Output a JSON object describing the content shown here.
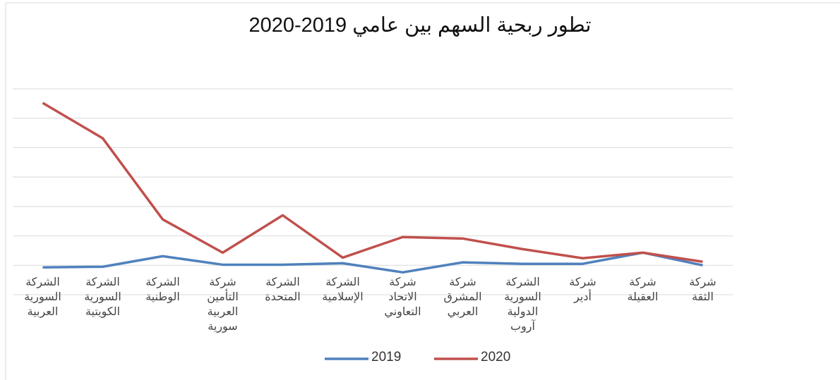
{
  "chart_data": {
    "type": "line",
    "title": "تطور ربحية السهم بين عامي 2019-2020",
    "categories": [
      "الشركة\nالسورية\nالعربية",
      "الشركة\nالسورية\nالكويتية",
      "الشركة\nالوطنية",
      "شركة\nالتأمين\nالعربية\nسورية",
      "الشركة\nالمتحدة",
      "الشركة\nالإسلامية",
      "شركة\nالاتحاد\nالتعاوني",
      "شركة\nالمشرق\nالعربي",
      "الشركة\nالسورية\nالدولية\nآروب",
      "شركة\nأدير",
      "شركة\nالعقيلة",
      "شركة\nالثقة"
    ],
    "series": [
      {
        "name": "2019",
        "color": "#4f81bd",
        "values": [
          -0.07,
          -0.05,
          0.31,
          0.02,
          0.02,
          0.07,
          -0.24,
          0.1,
          0.05,
          0.05,
          0.43,
          0
        ]
      },
      {
        "name": "2020",
        "color": "#c0504d",
        "values": [
          5.52,
          4.32,
          1.56,
          0.43,
          1.7,
          0.26,
          0.96,
          0.91,
          0.55,
          0.24,
          0.43,
          0.12
        ]
      }
    ],
    "ylim": [
      -1,
      6
    ],
    "yticks": [
      -1,
      0,
      1,
      2,
      3,
      4,
      5,
      6
    ],
    "grid": true,
    "show_tick_labels": false,
    "legend": "bottom"
  }
}
